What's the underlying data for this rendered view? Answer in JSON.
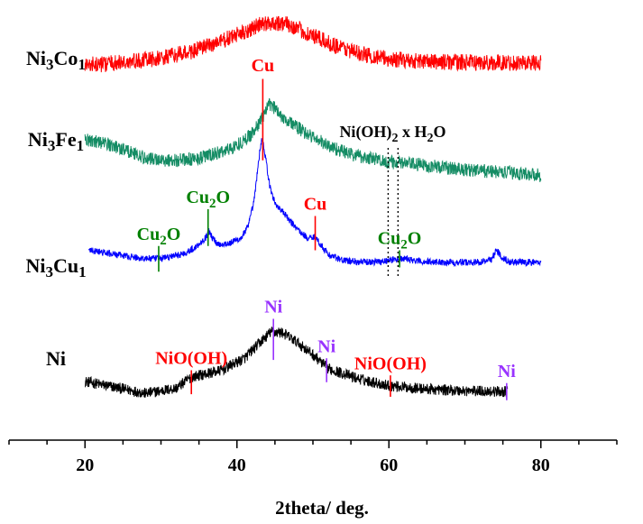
{
  "chart_data": {
    "type": "line",
    "title": "",
    "xlabel": "2theta/ deg.",
    "ylabel": "",
    "xlim": [
      10,
      90
    ],
    "xticks": [
      20,
      40,
      60,
      80
    ],
    "tick_labels": [
      "20",
      "40",
      "60",
      "80"
    ],
    "y_axis_shown": false,
    "grid": false,
    "legend": "none",
    "series": [
      {
        "key": "ni",
        "label_parts": [
          {
            "t": "Ni",
            "s": "n"
          }
        ],
        "color": "#000000",
        "noise": 1.6,
        "points": [
          [
            20,
            -3
          ],
          [
            24,
            -10
          ],
          [
            28,
            -17
          ],
          [
            32,
            -11
          ],
          [
            34,
            2
          ],
          [
            38,
            10
          ],
          [
            41,
            24
          ],
          [
            43,
            42
          ],
          [
            44.5,
            55
          ],
          [
            46,
            54
          ],
          [
            48,
            42
          ],
          [
            50,
            28
          ],
          [
            52,
            12
          ],
          [
            56,
            0
          ],
          [
            60,
            -8
          ],
          [
            65,
            -12
          ],
          [
            70,
            -14
          ],
          [
            75.6,
            -15
          ]
        ]
      },
      {
        "key": "nicu",
        "label_parts": [
          {
            "t": "Ni",
            "s": "n"
          },
          {
            "t": "3",
            "s": "sub"
          },
          {
            "t": "Cu",
            "s": "n"
          },
          {
            "t": "1",
            "s": "sub"
          }
        ],
        "color": "#0000ff",
        "noise": 1.0,
        "points": [
          [
            20.5,
            150
          ],
          [
            24,
            145
          ],
          [
            27,
            141
          ],
          [
            29.5,
            140
          ],
          [
            31,
            142
          ],
          [
            33,
            146
          ],
          [
            34.5,
            153
          ],
          [
            35.3,
            160
          ],
          [
            36,
            166
          ],
          [
            36.3,
            172
          ],
          [
            36.8,
            164
          ],
          [
            37.5,
            157
          ],
          [
            39,
            158
          ],
          [
            40.5,
            164
          ],
          [
            41.5,
            178
          ],
          [
            42.3,
            210
          ],
          [
            42.9,
            258
          ],
          [
            43.3,
            282
          ],
          [
            43.7,
            262
          ],
          [
            44.3,
            225
          ],
          [
            45,
            205
          ],
          [
            46,
            195
          ],
          [
            47,
            184
          ],
          [
            48.5,
            170
          ],
          [
            49.5,
            163
          ],
          [
            50.1,
            167
          ],
          [
            50.6,
            162
          ],
          [
            52,
            145
          ],
          [
            54,
            138
          ],
          [
            57,
            136
          ],
          [
            59,
            137
          ],
          [
            60.5,
            139
          ],
          [
            62,
            140
          ],
          [
            64,
            137
          ],
          [
            68,
            136
          ],
          [
            72,
            136
          ],
          [
            73.5,
            140
          ],
          [
            74.2,
            150
          ],
          [
            74.9,
            142
          ],
          [
            76,
            136
          ],
          [
            80,
            136
          ]
        ]
      },
      {
        "key": "nife",
        "label_parts": [
          {
            "t": "Ni",
            "s": "n"
          },
          {
            "t": "3",
            "s": "sub"
          },
          {
            "t": "Fe",
            "s": "n"
          },
          {
            "t": "1",
            "s": "sub"
          }
        ],
        "color": "#148c64",
        "noise": 2.0,
        "points": [
          [
            20,
            280
          ],
          [
            23,
            274
          ],
          [
            26,
            265
          ],
          [
            28,
            257
          ],
          [
            31,
            255
          ],
          [
            34,
            256
          ],
          [
            37,
            262
          ],
          [
            39,
            268
          ],
          [
            41,
            278
          ],
          [
            42.5,
            292
          ],
          [
            43.5,
            308
          ],
          [
            44.3,
            320
          ],
          [
            45,
            316
          ],
          [
            46,
            306
          ],
          [
            48,
            293
          ],
          [
            50,
            282
          ],
          [
            52,
            272
          ],
          [
            55,
            262
          ],
          [
            60,
            253
          ],
          [
            65,
            249
          ],
          [
            70,
            244
          ],
          [
            75,
            241
          ],
          [
            80,
            238
          ]
        ]
      },
      {
        "key": "nico",
        "label_parts": [
          {
            "t": "Ni",
            "s": "n"
          },
          {
            "t": "3",
            "s": "sub"
          },
          {
            "t": "Co",
            "s": "n"
          },
          {
            "t": "1",
            "s": "sub"
          }
        ],
        "color": "#ff0000",
        "noise": 2.4,
        "points": [
          [
            20,
            366
          ],
          [
            25,
            369
          ],
          [
            30,
            374
          ],
          [
            34,
            382
          ],
          [
            38,
            394
          ],
          [
            41,
            405
          ],
          [
            43,
            413
          ],
          [
            45,
            416
          ],
          [
            47,
            413
          ],
          [
            49,
            404
          ],
          [
            52,
            392
          ],
          [
            56,
            380
          ],
          [
            60,
            373
          ],
          [
            66,
            370
          ],
          [
            72,
            369
          ],
          [
            80,
            369
          ]
        ]
      }
    ],
    "markers": [
      {
        "text": "NiO(OH)",
        "x": 34,
        "color": "#ff0000",
        "y1": -18,
        "y2": 10
      },
      {
        "text": "Ni",
        "x": 44.8,
        "color": "#9933ff",
        "y1": 22,
        "y2": 70
      },
      {
        "text": "Ni",
        "x": 51.8,
        "color": "#9933ff",
        "y1": -4,
        "y2": 24
      },
      {
        "text": "NiO(OH)",
        "x": 60.2,
        "color": "#ff0000",
        "y1": -21,
        "y2": 4
      },
      {
        "text": "Ni",
        "x": 75.5,
        "color": "#9933ff",
        "y1": -25,
        "y2": -5
      },
      {
        "text": "Cu",
        "x": 43.4,
        "color": "#ff0000",
        "y1": 255,
        "y2": 350
      },
      {
        "text": "Cu",
        "x": 50.3,
        "color": "#ff0000",
        "y1": 150,
        "y2": 190
      },
      {
        "text": "Cu2O",
        "x": 29.7,
        "color": "#008000",
        "y1": 125,
        "y2": 155
      },
      {
        "text": "Cu2O",
        "x": 36.2,
        "color": "#008000",
        "y1": 155,
        "y2": 198
      },
      {
        "text": "Cu2O",
        "x": 61.4,
        "color": "#008000",
        "y1": 130,
        "y2": 150
      }
    ],
    "dotted_lines": [
      {
        "x": 59.9,
        "y1": 120,
        "y2": 270
      },
      {
        "x": 61.2,
        "y1": 120,
        "y2": 270
      }
    ],
    "annotations": [
      {
        "key": "cu_main",
        "parts": [
          {
            "t": "Cu",
            "s": "n"
          }
        ],
        "color": "#ff0000",
        "x": 43.4,
        "y": 355
      },
      {
        "key": "cu_side",
        "parts": [
          {
            "t": "Cu",
            "s": "n"
          }
        ],
        "color": "#ff0000",
        "x": 50.3,
        "y": 193
      },
      {
        "key": "cu2o_a",
        "parts": [
          {
            "t": "Cu",
            "s": "n"
          },
          {
            "t": "2",
            "s": "sub"
          },
          {
            "t": "O",
            "s": "n"
          }
        ],
        "color": "#008000",
        "x": 29.7,
        "y": 158
      },
      {
        "key": "cu2o_b",
        "parts": [
          {
            "t": "Cu",
            "s": "n"
          },
          {
            "t": "2",
            "s": "sub"
          },
          {
            "t": "O",
            "s": "n"
          }
        ],
        "color": "#008000",
        "x": 36.2,
        "y": 201
      },
      {
        "key": "cu2o_c",
        "parts": [
          {
            "t": "Cu",
            "s": "n"
          },
          {
            "t": "2",
            "s": "sub"
          },
          {
            "t": "O",
            "s": "n"
          }
        ],
        "color": "#008000",
        "x": 61.4,
        "y": 153
      },
      {
        "key": "nioh_a",
        "parts": [
          {
            "t": "NiO(OH)",
            "s": "n"
          }
        ],
        "color": "#ff0000",
        "x": 34,
        "y": 13
      },
      {
        "key": "ni_a",
        "parts": [
          {
            "t": "Ni",
            "s": "n"
          }
        ],
        "color": "#9933ff",
        "x": 44.8,
        "y": 73
      },
      {
        "key": "ni_b",
        "parts": [
          {
            "t": "Ni",
            "s": "n"
          }
        ],
        "color": "#9933ff",
        "x": 51.8,
        "y": 27
      },
      {
        "key": "nioh_b",
        "parts": [
          {
            "t": "NiO(OH)",
            "s": "n"
          }
        ],
        "color": "#ff0000",
        "x": 60.2,
        "y": 7
      },
      {
        "key": "ni_c",
        "parts": [
          {
            "t": "Ni",
            "s": "n"
          }
        ],
        "color": "#9933ff",
        "x": 75.5,
        "y": -2
      },
      {
        "key": "nioh2",
        "parts": [
          {
            "t": "Ni(OH)",
            "s": "n"
          },
          {
            "t": "2",
            "s": "sub"
          },
          {
            "t": " x H",
            "s": "n"
          },
          {
            "t": "2",
            "s": "sub"
          },
          {
            "t": "O",
            "s": "n"
          }
        ],
        "color": "#000000",
        "x": 60.5,
        "y": 278
      }
    ]
  }
}
